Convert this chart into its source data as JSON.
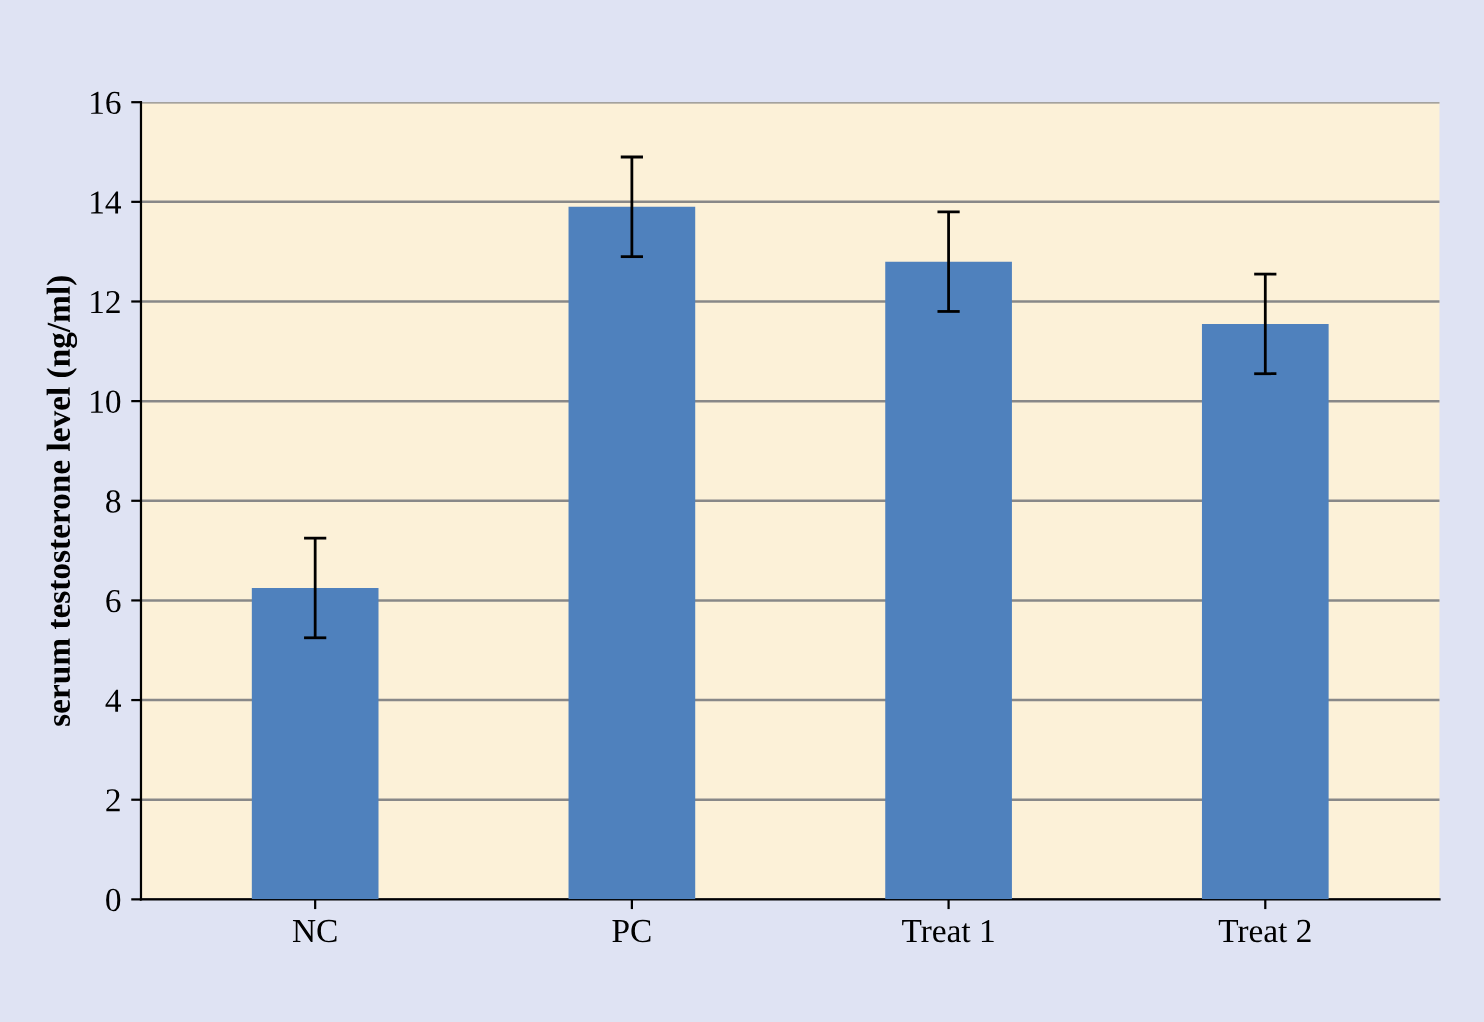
{
  "chart_data": {
    "type": "bar",
    "ylabel": "serum testosterone level (ng/ml)",
    "categories": [
      "NC",
      "PC",
      "Treat 1",
      "Treat 2"
    ],
    "values": [
      6.25,
      13.9,
      12.8,
      11.55
    ],
    "errors": [
      1.0,
      1.0,
      1.0,
      1.0
    ],
    "color": "#4f81bd",
    "ylim": [
      0,
      16
    ],
    "yticks": [
      0,
      2,
      4,
      6,
      8,
      10,
      12,
      14,
      16
    ],
    "grid": "y",
    "legend": false
  }
}
